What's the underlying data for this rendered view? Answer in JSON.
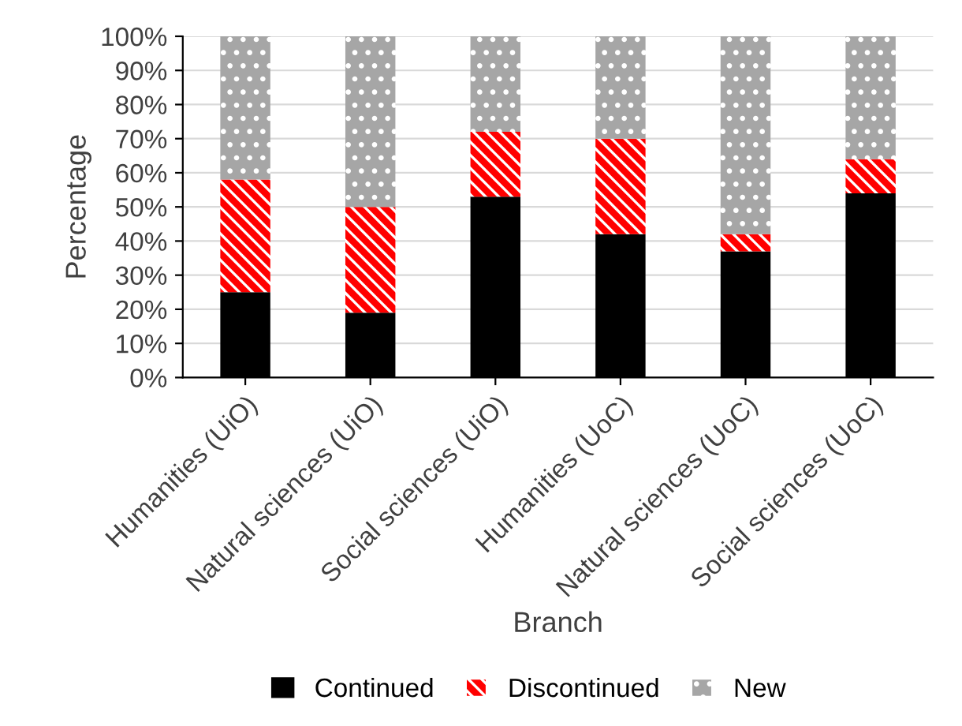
{
  "chart_data": {
    "type": "bar",
    "stacked": true,
    "xlabel": "Branch",
    "ylabel": "Percentage",
    "categories": [
      "Humanities (UiO)",
      "Natural sciences (UiO)",
      "Social sciences (UiO)",
      "Humanities (UoC)",
      "Natural sciences (UoC)",
      "Social sciences (UoC)"
    ],
    "series": [
      {
        "name": "Continued",
        "color": "#000000",
        "values": [
          25,
          19,
          53,
          42,
          37,
          54
        ]
      },
      {
        "name": "Discontinued",
        "color": "#ff0000",
        "values": [
          33,
          31,
          19,
          28,
          5,
          10
        ]
      },
      {
        "name": "New",
        "color": "#a6a6a6",
        "values": [
          42,
          50,
          28,
          30,
          58,
          36
        ]
      }
    ],
    "ylim": [
      0,
      100
    ],
    "yticks": [
      {
        "value": 0,
        "label": "0%"
      },
      {
        "value": 10,
        "label": "10%"
      },
      {
        "value": 20,
        "label": "20%"
      },
      {
        "value": 30,
        "label": "30%"
      },
      {
        "value": 40,
        "label": "40%"
      },
      {
        "value": 50,
        "label": "50%"
      },
      {
        "value": 60,
        "label": "60%"
      },
      {
        "value": 70,
        "label": "70%"
      },
      {
        "value": 80,
        "label": "80%"
      },
      {
        "value": 90,
        "label": "90%"
      },
      {
        "value": 100,
        "label": "100%"
      }
    ],
    "grid": "y",
    "legend": "bottom"
  }
}
